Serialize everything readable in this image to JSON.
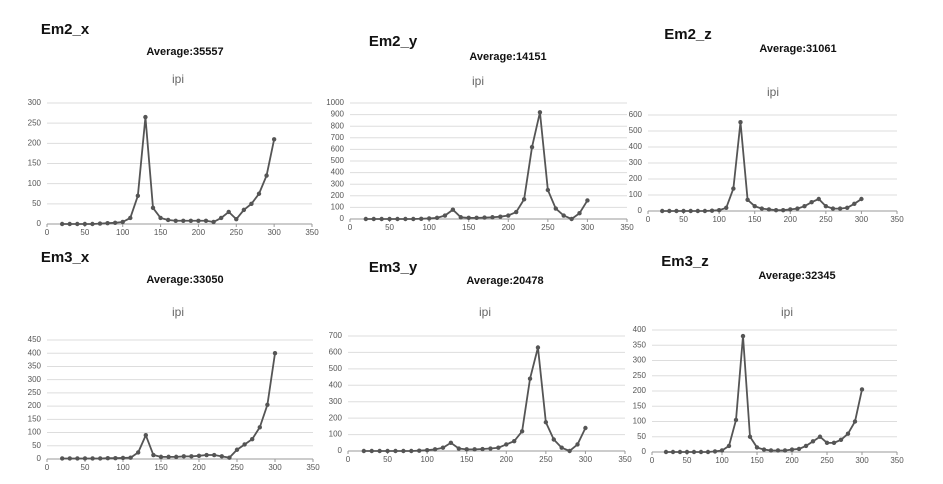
{
  "chart_data": [
    {
      "type": "line",
      "label": "Em2_x",
      "subtitle": "Average:35557",
      "title": "ipi",
      "color": "#555555",
      "grid": true,
      "x": [
        20,
        30,
        40,
        50,
        60,
        70,
        80,
        90,
        100,
        110,
        120,
        130,
        140,
        150,
        160,
        170,
        180,
        190,
        200,
        210,
        220,
        230,
        240,
        250,
        260,
        270,
        280,
        290,
        300
      ],
      "values": [
        0,
        0,
        0,
        0,
        0,
        1,
        2,
        3,
        5,
        15,
        70,
        265,
        40,
        15,
        10,
        8,
        8,
        8,
        8,
        8,
        5,
        15,
        30,
        12,
        35,
        50,
        75,
        120,
        210
      ],
      "xlim": [
        0,
        350
      ],
      "xticks": [
        0,
        50,
        100,
        150,
        200,
        250,
        300,
        350
      ],
      "ylim": [
        0,
        300
      ],
      "yticks": [
        0,
        50,
        100,
        150,
        200,
        250,
        300
      ]
    },
    {
      "type": "line",
      "label": "Em2_y",
      "subtitle": "Average:14151",
      "title": "ipi",
      "color": "#555555",
      "grid": true,
      "x": [
        20,
        30,
        40,
        50,
        60,
        70,
        80,
        90,
        100,
        110,
        120,
        130,
        140,
        150,
        160,
        170,
        180,
        190,
        200,
        210,
        220,
        230,
        240,
        250,
        260,
        270,
        280,
        290,
        300
      ],
      "values": [
        0,
        0,
        0,
        0,
        0,
        0,
        0,
        2,
        5,
        10,
        30,
        80,
        15,
        10,
        10,
        12,
        15,
        20,
        30,
        60,
        170,
        620,
        920,
        250,
        90,
        30,
        0,
        50,
        160
      ],
      "xlim": [
        0,
        350
      ],
      "xticks": [
        0,
        50,
        100,
        150,
        200,
        250,
        300,
        350
      ],
      "ylim": [
        0,
        1000
      ],
      "yticks": [
        0,
        100,
        200,
        300,
        400,
        500,
        600,
        700,
        800,
        900,
        1000
      ]
    },
    {
      "type": "line",
      "label": "Em2_z",
      "subtitle": "Average:31061",
      "title": "ipi",
      "color": "#555555",
      "grid": true,
      "x": [
        20,
        30,
        40,
        50,
        60,
        70,
        80,
        90,
        100,
        110,
        120,
        130,
        140,
        150,
        160,
        170,
        180,
        190,
        200,
        210,
        220,
        230,
        240,
        250,
        260,
        270,
        280,
        290,
        300
      ],
      "values": [
        0,
        0,
        0,
        0,
        0,
        0,
        0,
        2,
        5,
        20,
        140,
        555,
        70,
        30,
        15,
        10,
        5,
        5,
        10,
        15,
        30,
        55,
        75,
        30,
        15,
        15,
        20,
        45,
        75
      ],
      "xlim": [
        0,
        350
      ],
      "xticks": [
        0,
        50,
        100,
        150,
        200,
        250,
        300,
        350
      ],
      "ylim": [
        0,
        600
      ],
      "yticks": [
        0,
        100,
        200,
        300,
        400,
        500,
        600
      ]
    },
    {
      "type": "line",
      "label": "Em3_x",
      "subtitle": "Average:33050",
      "title": "ipi",
      "color": "#555555",
      "grid": true,
      "x": [
        20,
        30,
        40,
        50,
        60,
        70,
        80,
        90,
        100,
        110,
        120,
        130,
        140,
        150,
        160,
        170,
        180,
        190,
        200,
        210,
        220,
        230,
        240,
        250,
        260,
        270,
        280,
        290,
        300
      ],
      "values": [
        2,
        2,
        2,
        2,
        2,
        2,
        3,
        3,
        4,
        5,
        25,
        90,
        15,
        8,
        8,
        8,
        10,
        10,
        12,
        15,
        15,
        10,
        5,
        35,
        55,
        75,
        120,
        205,
        400
      ],
      "xlim": [
        0,
        350
      ],
      "xticks": [
        0,
        50,
        100,
        150,
        200,
        250,
        300,
        350
      ],
      "ylim": [
        0,
        450
      ],
      "yticks": [
        0,
        50,
        100,
        150,
        200,
        250,
        300,
        350,
        400,
        450
      ]
    },
    {
      "type": "line",
      "label": "Em3_y",
      "subtitle": "Average:20478",
      "title": "ipi",
      "color": "#555555",
      "grid": true,
      "x": [
        20,
        30,
        40,
        50,
        60,
        70,
        80,
        90,
        100,
        110,
        120,
        130,
        140,
        150,
        160,
        170,
        180,
        190,
        200,
        210,
        220,
        230,
        240,
        250,
        260,
        270,
        280,
        290,
        300
      ],
      "values": [
        0,
        0,
        0,
        0,
        0,
        0,
        0,
        2,
        5,
        10,
        20,
        50,
        15,
        10,
        10,
        12,
        15,
        20,
        40,
        60,
        120,
        440,
        630,
        175,
        70,
        20,
        0,
        40,
        140
      ],
      "xlim": [
        0,
        350
      ],
      "xticks": [
        0,
        50,
        100,
        150,
        200,
        250,
        300,
        350
      ],
      "ylim": [
        0,
        700
      ],
      "yticks": [
        0,
        100,
        200,
        300,
        400,
        500,
        600,
        700
      ]
    },
    {
      "type": "line",
      "label": "Em3_z",
      "subtitle": "Average:32345",
      "title": "ipi",
      "color": "#555555",
      "grid": true,
      "x": [
        20,
        30,
        40,
        50,
        60,
        70,
        80,
        90,
        100,
        110,
        120,
        130,
        140,
        150,
        160,
        170,
        180,
        190,
        200,
        210,
        220,
        230,
        240,
        250,
        260,
        270,
        280,
        290,
        300
      ],
      "values": [
        0,
        0,
        0,
        0,
        0,
        0,
        0,
        2,
        5,
        20,
        105,
        380,
        50,
        15,
        8,
        5,
        5,
        5,
        8,
        10,
        20,
        35,
        50,
        30,
        30,
        40,
        60,
        100,
        205
      ],
      "xlim": [
        0,
        350
      ],
      "xticks": [
        0,
        50,
        100,
        150,
        200,
        250,
        300,
        350
      ],
      "ylim": [
        0,
        400
      ],
      "yticks": [
        0,
        50,
        100,
        150,
        200,
        250,
        300,
        350,
        400
      ]
    }
  ]
}
